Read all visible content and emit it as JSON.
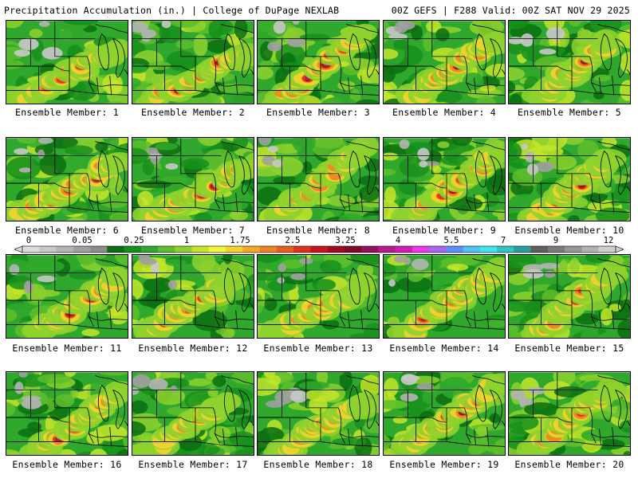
{
  "header": {
    "title_left": "Precipitation Accumulation (in.) | College of DuPage NEXLAB",
    "title_right": "00Z GEFS | F288 Valid: 00Z SAT NOV 29 2025"
  },
  "colorbar": {
    "tick_labels": [
      "0",
      "0.05",
      "0.25",
      "1",
      "1.75",
      "2.5",
      "3.25",
      "4",
      "5.5",
      "7",
      "9",
      "12"
    ],
    "colors": [
      "#dcdcdc",
      "#c8c8c8",
      "#b4b4b4",
      "#a0a0a0",
      "#8c8c8c",
      "#0b6e12",
      "#16901c",
      "#2fa82d",
      "#5ebe2c",
      "#8ed12e",
      "#c4e52a",
      "#f2f53a",
      "#f6d22d",
      "#f4a92a",
      "#ee8326",
      "#e85d22",
      "#e0301c",
      "#c7131c",
      "#a00c1e",
      "#7f0a28",
      "#90125c",
      "#b8198a",
      "#d51db4",
      "#e93ae6",
      "#a865f2",
      "#5c8ef7",
      "#4cc3f7",
      "#3de6ef",
      "#30c4c4",
      "#2a9c9c",
      "#5f5f5f",
      "#7a7a7a",
      "#969696",
      "#b2b2b2",
      "#cfcfcf"
    ]
  },
  "panels": [
    {
      "label": "Ensemble Member: 1"
    },
    {
      "label": "Ensemble Member: 2"
    },
    {
      "label": "Ensemble Member: 3"
    },
    {
      "label": "Ensemble Member: 4"
    },
    {
      "label": "Ensemble Member: 5"
    },
    {
      "label": "Ensemble Member: 6"
    },
    {
      "label": "Ensemble Member: 7"
    },
    {
      "label": "Ensemble Member: 8"
    },
    {
      "label": "Ensemble Member: 9"
    },
    {
      "label": "Ensemble Member: 10"
    },
    {
      "label": "Ensemble Member: 11"
    },
    {
      "label": "Ensemble Member: 12"
    },
    {
      "label": "Ensemble Member: 13"
    },
    {
      "label": "Ensemble Member: 14"
    },
    {
      "label": "Ensemble Member: 15"
    },
    {
      "label": "Ensemble Member: 16"
    },
    {
      "label": "Ensemble Member: 17"
    },
    {
      "label": "Ensemble Member: 18"
    },
    {
      "label": "Ensemble Member: 19"
    },
    {
      "label": "Ensemble Member: 20"
    }
  ]
}
